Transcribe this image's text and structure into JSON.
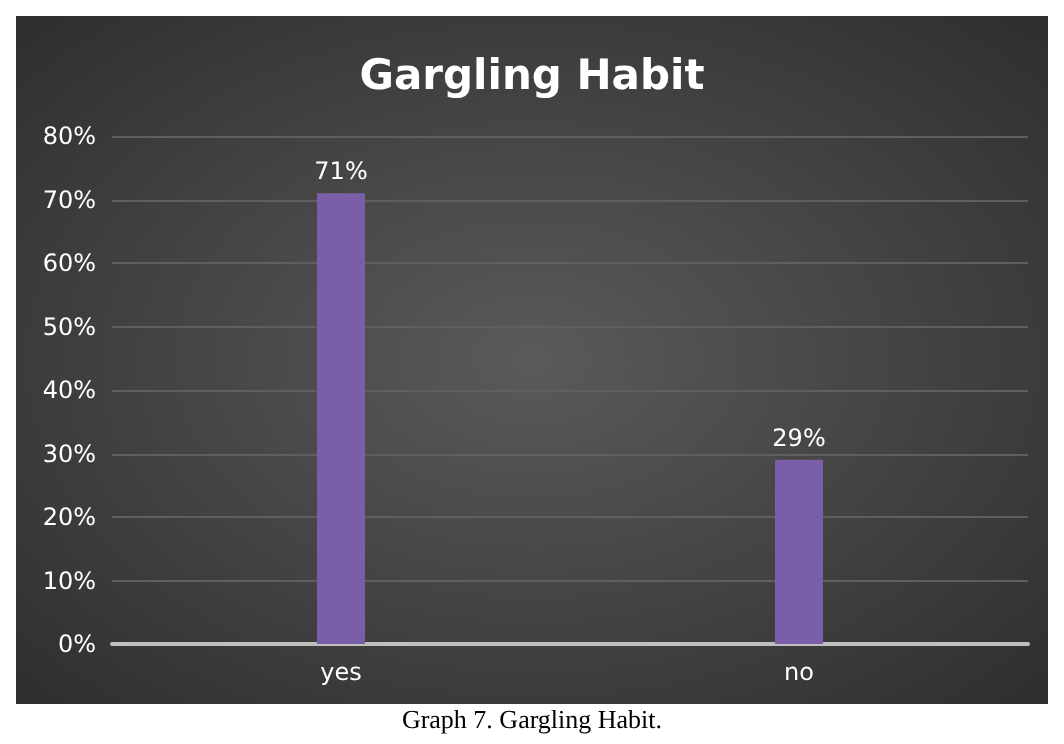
{
  "chart_data": {
    "type": "bar",
    "title": "Gargling Habit",
    "categories": [
      "yes",
      "no"
    ],
    "values": [
      71,
      29
    ],
    "value_labels": [
      "71%",
      "29%"
    ],
    "color": "#7b5ea8",
    "ylim": [
      0,
      80
    ],
    "yticks": [
      {
        "value": 0,
        "label": "0%"
      },
      {
        "value": 10,
        "label": "10%"
      },
      {
        "value": 20,
        "label": "20%"
      },
      {
        "value": 30,
        "label": "30%"
      },
      {
        "value": 40,
        "label": "40%"
      },
      {
        "value": 50,
        "label": "50%"
      },
      {
        "value": 60,
        "label": "60%"
      },
      {
        "value": 70,
        "label": "70%"
      },
      {
        "value": 80,
        "label": "80%"
      }
    ],
    "grid": "y",
    "annotations": [
      "Graph 7. Gargling Habit."
    ]
  }
}
